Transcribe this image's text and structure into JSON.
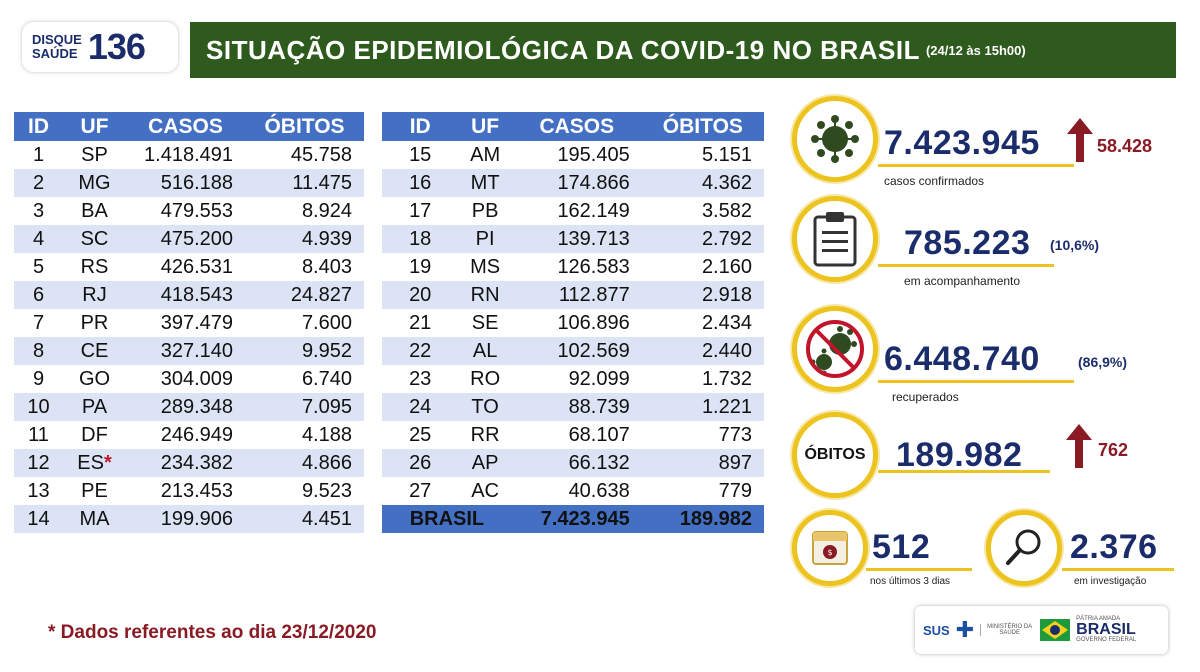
{
  "logo": {
    "line1": "DISQUE",
    "line2": "SAÚDE",
    "number": "136"
  },
  "header": {
    "title": "SITUAÇÃO EPIDEMIOLÓGICA DA COVID-19 NO BRASIL",
    "date": "(24/12 às 15h00)"
  },
  "table_headers": [
    "ID",
    "UF",
    "CASOS",
    "ÓBITOS"
  ],
  "table_left": [
    [
      "1",
      "SP",
      "1.418.491",
      "45.758"
    ],
    [
      "2",
      "MG",
      "516.188",
      "11.475"
    ],
    [
      "3",
      "BA",
      "479.553",
      "8.924"
    ],
    [
      "4",
      "SC",
      "475.200",
      "4.939"
    ],
    [
      "5",
      "RS",
      "426.531",
      "8.403"
    ],
    [
      "6",
      "RJ",
      "418.543",
      "24.827"
    ],
    [
      "7",
      "PR",
      "397.479",
      "7.600"
    ],
    [
      "8",
      "CE",
      "327.140",
      "9.952"
    ],
    [
      "9",
      "GO",
      "304.009",
      "6.740"
    ],
    [
      "10",
      "PA",
      "289.348",
      "7.095"
    ],
    [
      "11",
      "DF",
      "246.949",
      "4.188"
    ],
    [
      "12",
      "ES",
      "234.382",
      "4.866"
    ],
    [
      "13",
      "PE",
      "213.453",
      "9.523"
    ],
    [
      "14",
      "MA",
      "199.906",
      "4.451"
    ]
  ],
  "table_right": [
    [
      "15",
      "AM",
      "195.405",
      "5.151"
    ],
    [
      "16",
      "MT",
      "174.866",
      "4.362"
    ],
    [
      "17",
      "PB",
      "162.149",
      "3.582"
    ],
    [
      "18",
      "PI",
      "139.713",
      "2.792"
    ],
    [
      "19",
      "MS",
      "126.583",
      "2.160"
    ],
    [
      "20",
      "RN",
      "112.877",
      "2.918"
    ],
    [
      "21",
      "SE",
      "106.896",
      "2.434"
    ],
    [
      "22",
      "AL",
      "102.569",
      "2.440"
    ],
    [
      "23",
      "RO",
      "92.099",
      "1.732"
    ],
    [
      "24",
      "TO",
      "88.739",
      "1.221"
    ],
    [
      "25",
      "RR",
      "68.107",
      "773"
    ],
    [
      "26",
      "AP",
      "66.132",
      "897"
    ],
    [
      "27",
      "AC",
      "40.638",
      "779"
    ]
  ],
  "es_marker": "*",
  "total": {
    "label": "BRASIL",
    "cases": "7.423.945",
    "deaths": "189.982"
  },
  "stats": {
    "confirmed": {
      "value": "7.423.945",
      "delta": "58.428",
      "label": "casos confirmados",
      "icon": "virus-icon"
    },
    "monitoring": {
      "value": "785.223",
      "pct": "(10,6%)",
      "label": "em acompanhamento",
      "icon": "clipboard-icon"
    },
    "recovered": {
      "value": "6.448.740",
      "pct": "(86,9%)",
      "label": "recuperados",
      "icon": "no-virus-icon"
    },
    "deaths": {
      "badge": "ÓBITOS",
      "value": "189.982",
      "delta": "762"
    },
    "last3": {
      "value": "512",
      "label": "nos últimos 3 dias",
      "icon": "calendar-icon"
    },
    "investigation": {
      "value": "2.376",
      "label": "em investigação",
      "icon": "magnifier-icon"
    }
  },
  "footer": {
    "note": "* Dados referentes ao dia 23/12/2020",
    "sus": "SUS",
    "ministry": "MINISTÉRIO DA SAÚDE",
    "patria": "PÁTRIA AMADA",
    "brasil": "BRASIL",
    "governo": "GOVERNO FEDERAL"
  },
  "colors": {
    "header_green": "#2f5a1d",
    "table_blue": "#4470c4",
    "row_alt": "#dbe3f4",
    "navy": "#1b2c6b",
    "gold": "#ecc31f",
    "dark_red": "#8a1a24"
  }
}
